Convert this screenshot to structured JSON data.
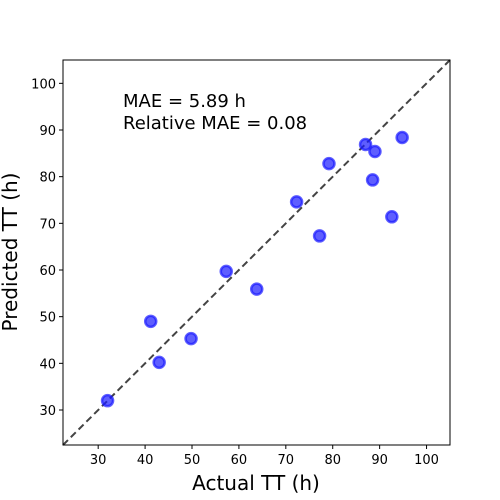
{
  "chart_data": {
    "type": "scatter",
    "xlabel": "Actual TT (h)",
    "ylabel": "Predicted TT (h)",
    "xlim": [
      22.5,
      105
    ],
    "ylim": [
      22.5,
      105
    ],
    "xticks": [
      30,
      40,
      50,
      60,
      70,
      80,
      90,
      100
    ],
    "yticks": [
      30,
      40,
      50,
      60,
      70,
      80,
      90,
      100
    ],
    "annotations": [
      "MAE = 5.89 h",
      "Relative MAE = 0.08"
    ],
    "reference_line": "y = x (dashed)",
    "grid": false,
    "colors": {
      "points": "#1a1aff",
      "reference": "#444444"
    },
    "points": [
      {
        "x": 32.0,
        "y": 32.0
      },
      {
        "x": 41.2,
        "y": 49.0
      },
      {
        "x": 43.0,
        "y": 40.2
      },
      {
        "x": 49.8,
        "y": 45.3
      },
      {
        "x": 57.3,
        "y": 59.7
      },
      {
        "x": 63.8,
        "y": 55.9
      },
      {
        "x": 72.3,
        "y": 74.6
      },
      {
        "x": 77.2,
        "y": 67.3
      },
      {
        "x": 79.2,
        "y": 82.8
      },
      {
        "x": 87.0,
        "y": 86.9
      },
      {
        "x": 88.5,
        "y": 79.3
      },
      {
        "x": 89.0,
        "y": 85.4
      },
      {
        "x": 92.6,
        "y": 71.4
      },
      {
        "x": 94.8,
        "y": 88.4
      }
    ]
  }
}
